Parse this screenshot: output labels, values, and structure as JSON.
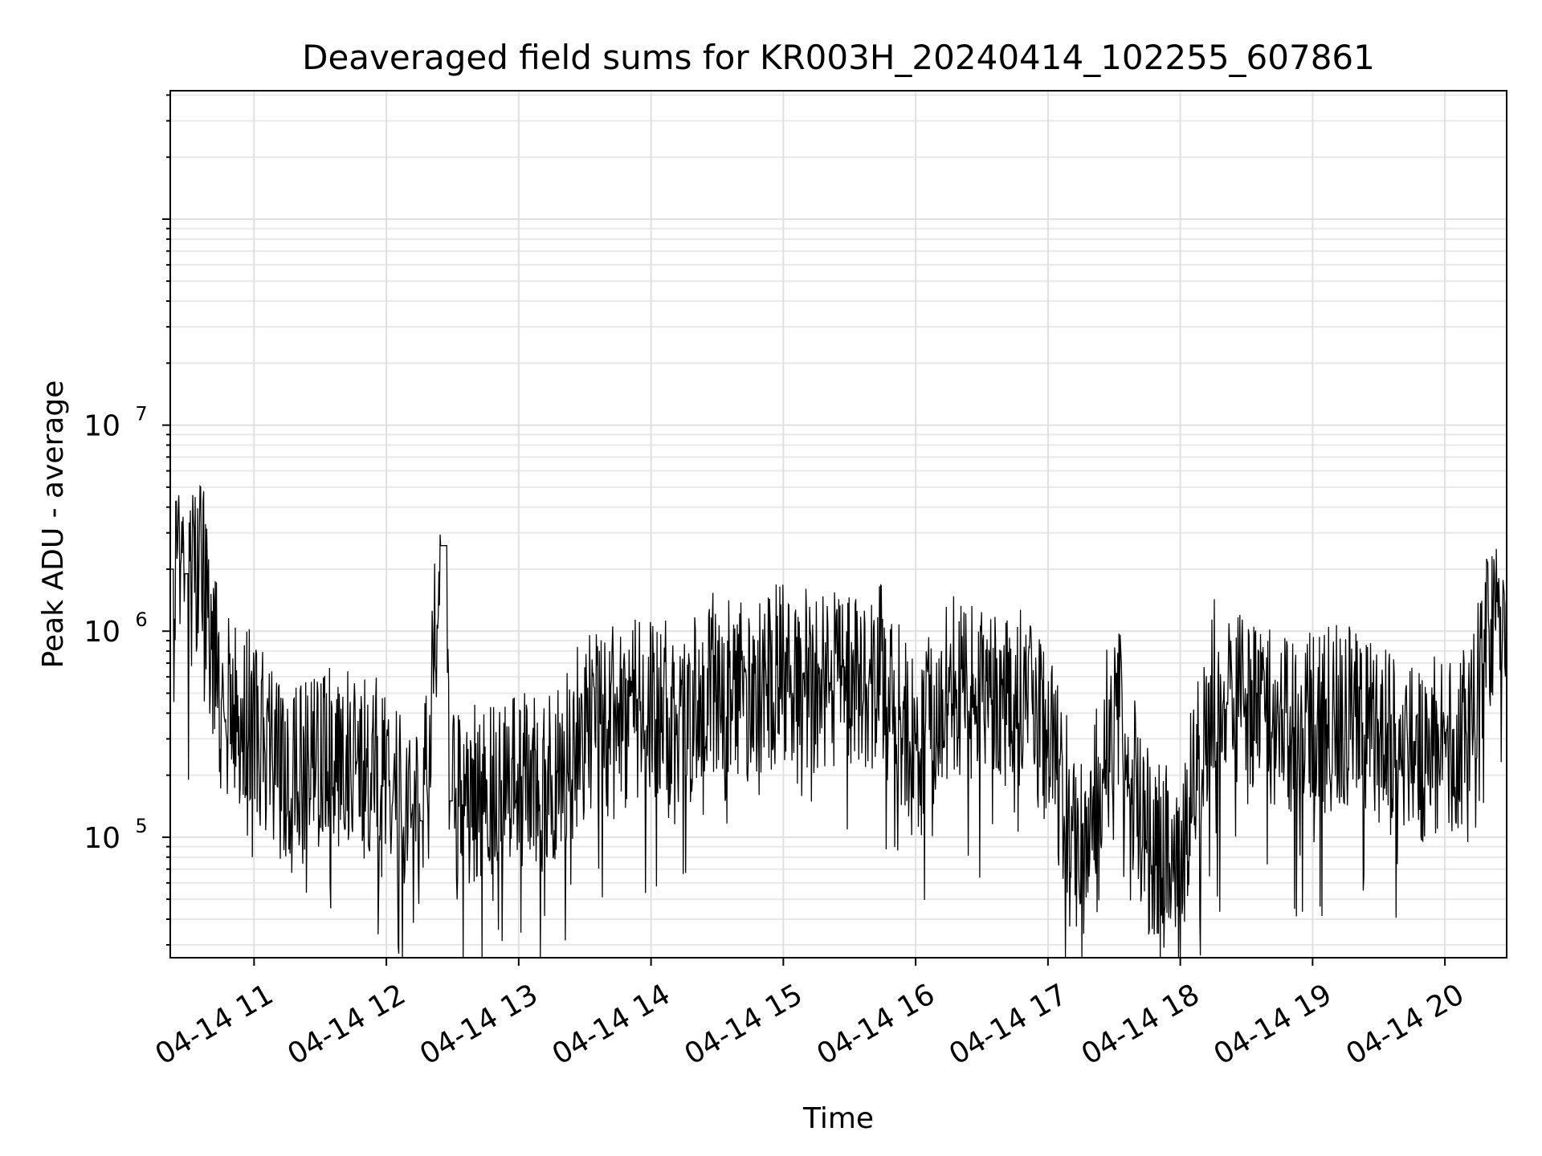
{
  "chart_data": {
    "type": "line",
    "title": "Deaveraged field sums for KR003H_20240414_102255_607861",
    "xlabel": "Time",
    "ylabel": "Peak ADU - average",
    "yscale": "log",
    "grid": true,
    "xlim": [
      "2024-04-14 10:22",
      "2024-04-14 20:28"
    ],
    "ylim": [
      26000,
      420000000
    ],
    "x_ticks": [
      "04-14 11",
      "04-14 12",
      "04-14 13",
      "04-14 14",
      "04-14 15",
      "04-14 16",
      "04-14 17",
      "04-14 18",
      "04-14 19",
      "04-14 20"
    ],
    "y_ticks": [
      {
        "base": "10",
        "exp": "5",
        "value": 100000
      },
      {
        "base": "10",
        "exp": "6",
        "value": 1000000
      },
      {
        "base": "10",
        "exp": "7",
        "value": 10000000
      }
    ],
    "line_color": "#000000",
    "series": [
      {
        "x": [
          "2024-04-14 10:22",
          "2024-04-14 10:30",
          "2024-04-14 10:37",
          "2024-04-14 10:45",
          "2024-04-14 11:00",
          "2024-04-14 11:15",
          "2024-04-14 11:30",
          "2024-04-14 11:45",
          "2024-04-14 12:00",
          "2024-04-14 12:15",
          "2024-04-14 12:26",
          "2024-04-14 12:30",
          "2024-04-14 12:45",
          "2024-04-14 13:00",
          "2024-04-14 13:15",
          "2024-04-14 13:30",
          "2024-04-14 13:45",
          "2024-04-14 14:00",
          "2024-04-14 14:15",
          "2024-04-14 14:30",
          "2024-04-14 14:45",
          "2024-04-14 15:00",
          "2024-04-14 15:15",
          "2024-04-14 15:30",
          "2024-04-14 15:45",
          "2024-04-14 16:00",
          "2024-04-14 16:15",
          "2024-04-14 16:30",
          "2024-04-14 16:45",
          "2024-04-14 17:00",
          "2024-04-14 17:15",
          "2024-04-14 17:30",
          "2024-04-14 17:45",
          "2024-04-14 18:00",
          "2024-04-14 18:15",
          "2024-04-14 18:30",
          "2024-04-14 18:45",
          "2024-04-14 19:00",
          "2024-04-14 19:15",
          "2024-04-14 19:30",
          "2024-04-14 19:45",
          "2024-04-14 20:00",
          "2024-04-14 20:10",
          "2024-04-14 20:20",
          "2024-04-14 20:28"
        ],
        "values": [
          2000000,
          1900000,
          1800000,
          450000,
          350000,
          180000,
          220000,
          280000,
          200000,
          120000,
          2600000,
          150000,
          160000,
          200000,
          180000,
          350000,
          400000,
          450000,
          350000,
          600000,
          500000,
          650000,
          550000,
          600000,
          600000,
          250000,
          550000,
          450000,
          500000,
          300000,
          80000,
          450000,
          100000,
          80000,
          550000,
          400000,
          350000,
          350000,
          400000,
          300000,
          250000,
          300000,
          300000,
          1200000,
          1500000
        ]
      }
    ]
  }
}
